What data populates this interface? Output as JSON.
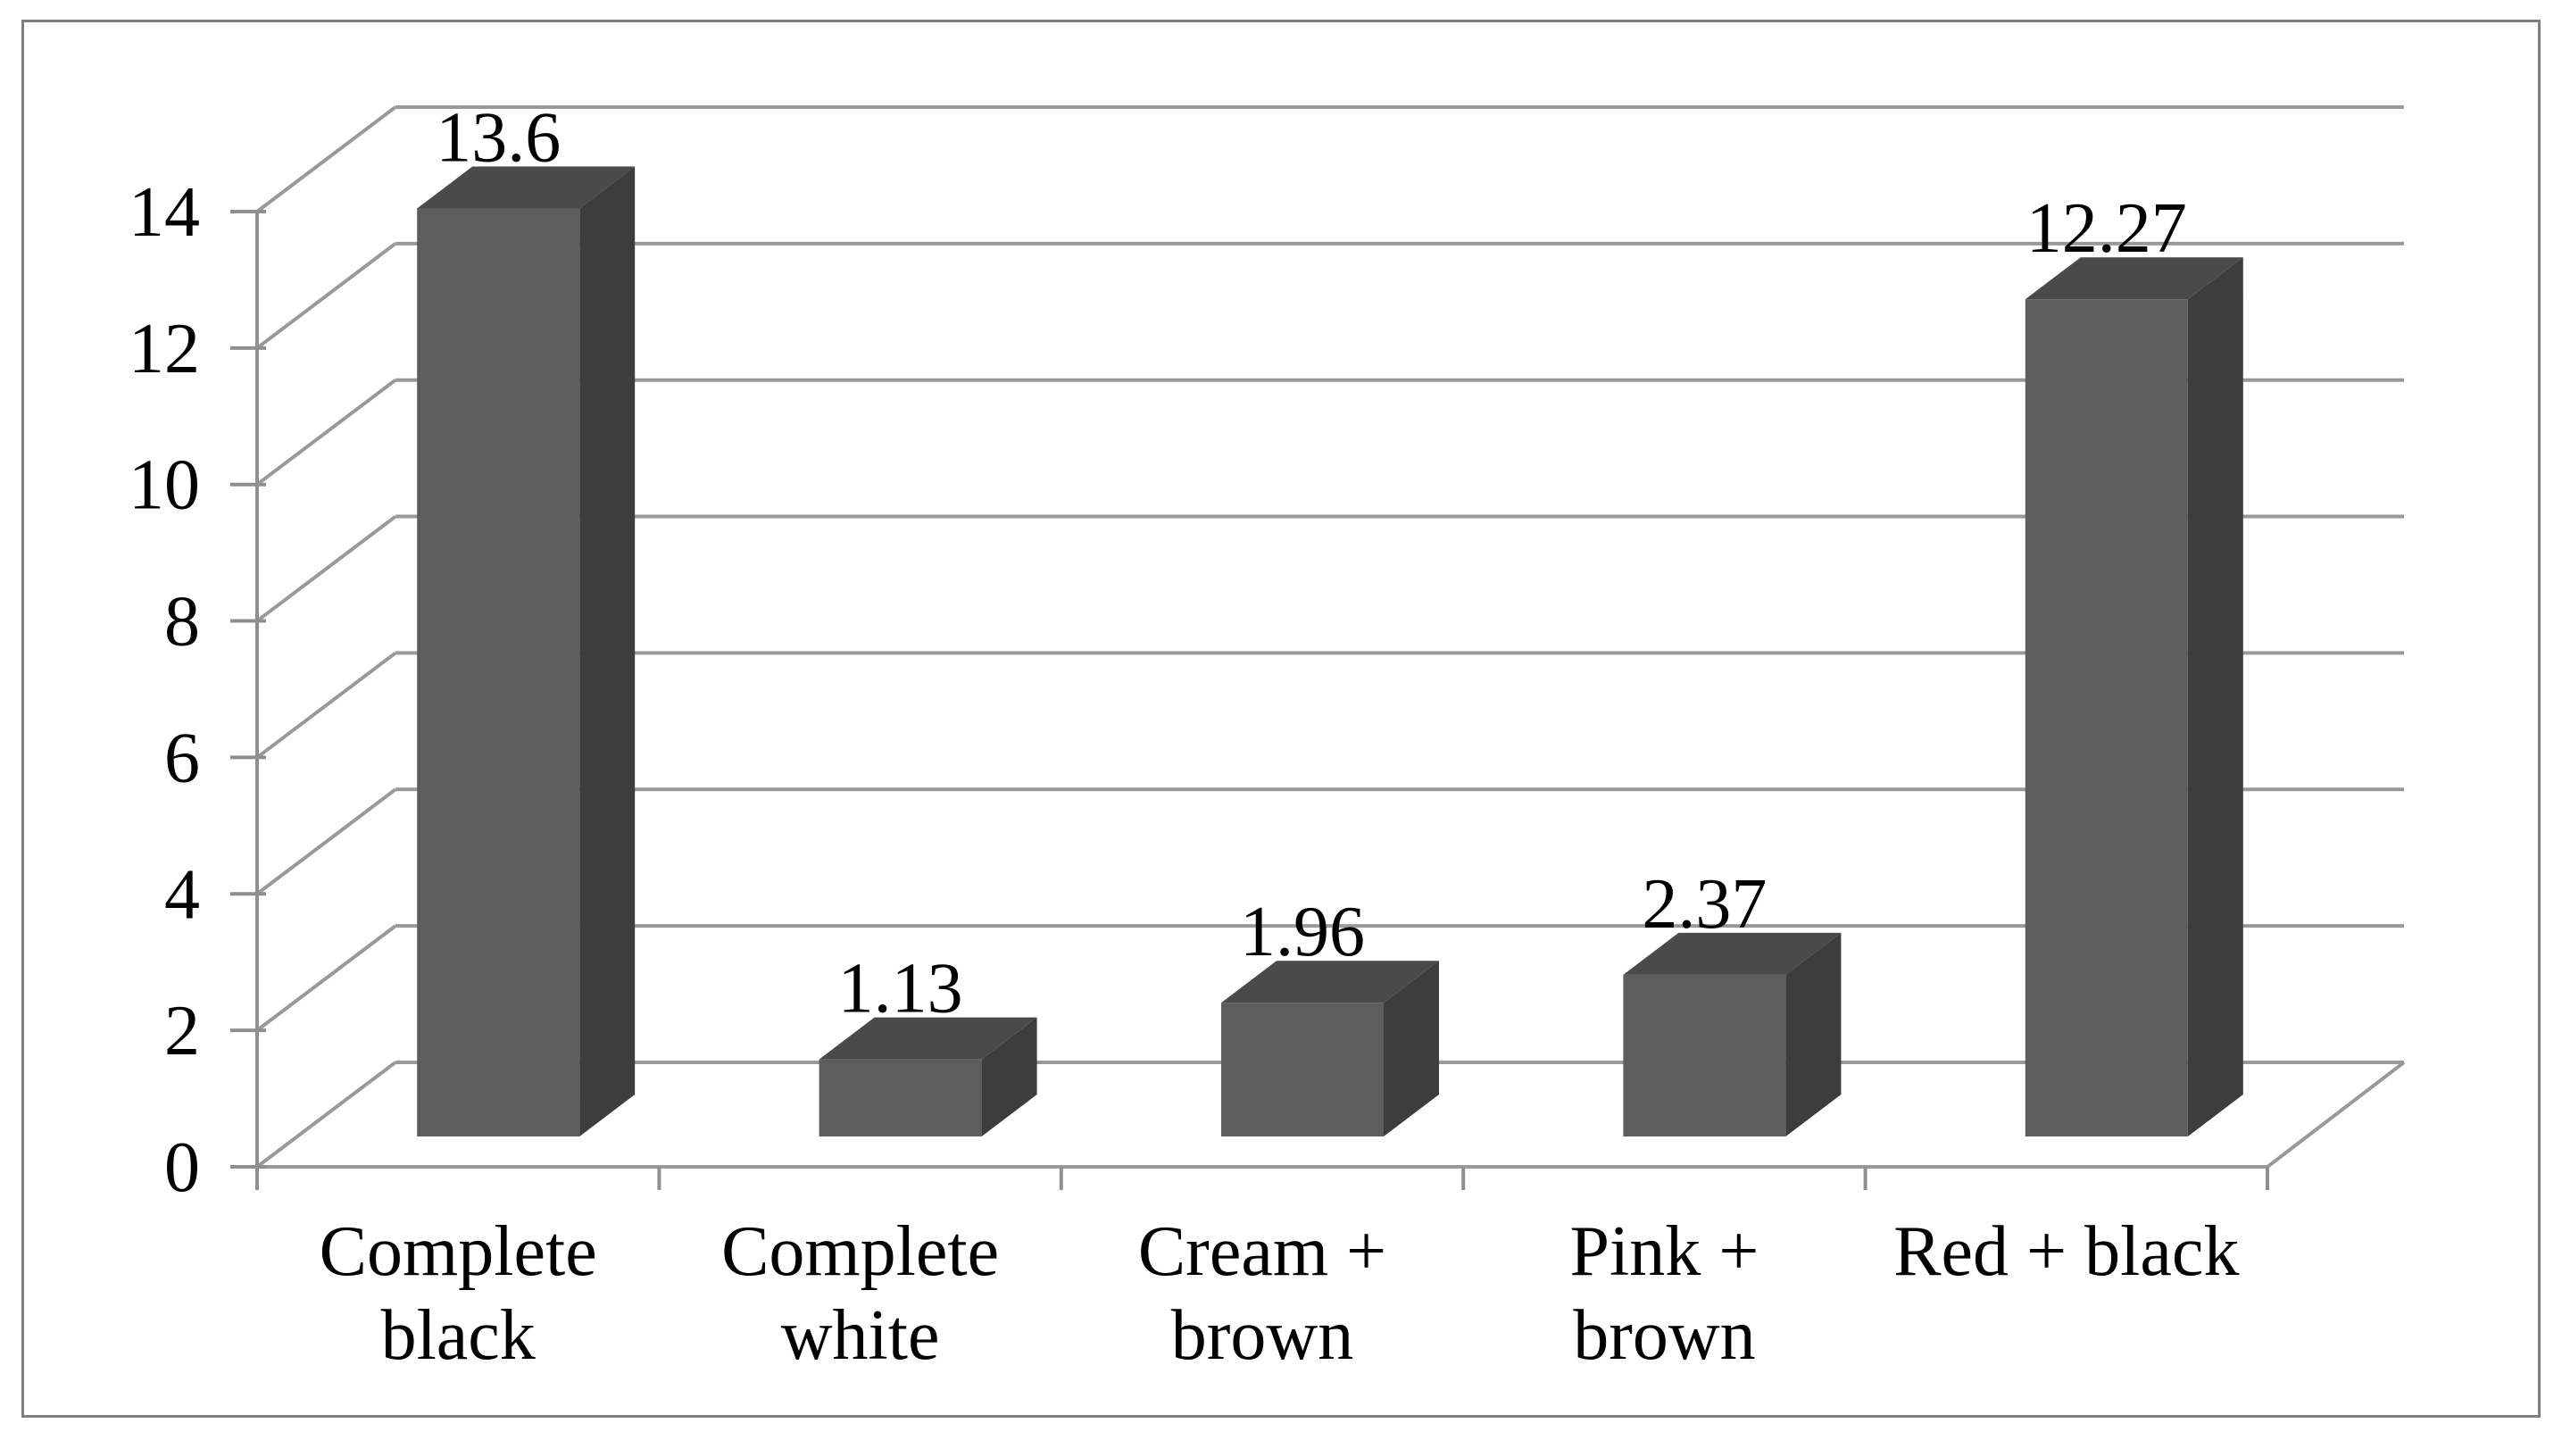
{
  "figure": {
    "background": "#ffffff",
    "border_color": "#7e7e7e"
  },
  "chart_data": {
    "type": "bar",
    "style": "3d-clustered-column",
    "title": "",
    "xlabel": "",
    "ylabel": "",
    "categories": [
      "Complete black",
      "Complete white",
      "Cream + brown",
      "Pink + brown",
      "Red + black"
    ],
    "category_label_lines": [
      [
        "Complete",
        "black"
      ],
      [
        "Complete",
        "white"
      ],
      [
        "Cream +",
        "brown"
      ],
      [
        "Pink +",
        "brown"
      ],
      [
        "Red + black"
      ]
    ],
    "values": [
      13.6,
      1.13,
      1.96,
      2.37,
      12.27
    ],
    "data_labels": [
      "13.6",
      "1.13",
      "1.96",
      "2.37",
      "12.27"
    ],
    "y_ticks": [
      0,
      2,
      4,
      6,
      8,
      10,
      12,
      14
    ],
    "y_tick_labels": [
      "0",
      "2",
      "4",
      "6",
      "8",
      "10",
      "12",
      "14"
    ],
    "ylim": [
      0,
      14
    ],
    "grid": true,
    "legend": false,
    "colors": {
      "bar_front": "#5d5d5d",
      "bar_top": "#4a4a4a",
      "bar_side": "#3d3d3d",
      "gridline": "#999999",
      "axis": "#8f8f8f",
      "label_text": "#000000"
    }
  }
}
